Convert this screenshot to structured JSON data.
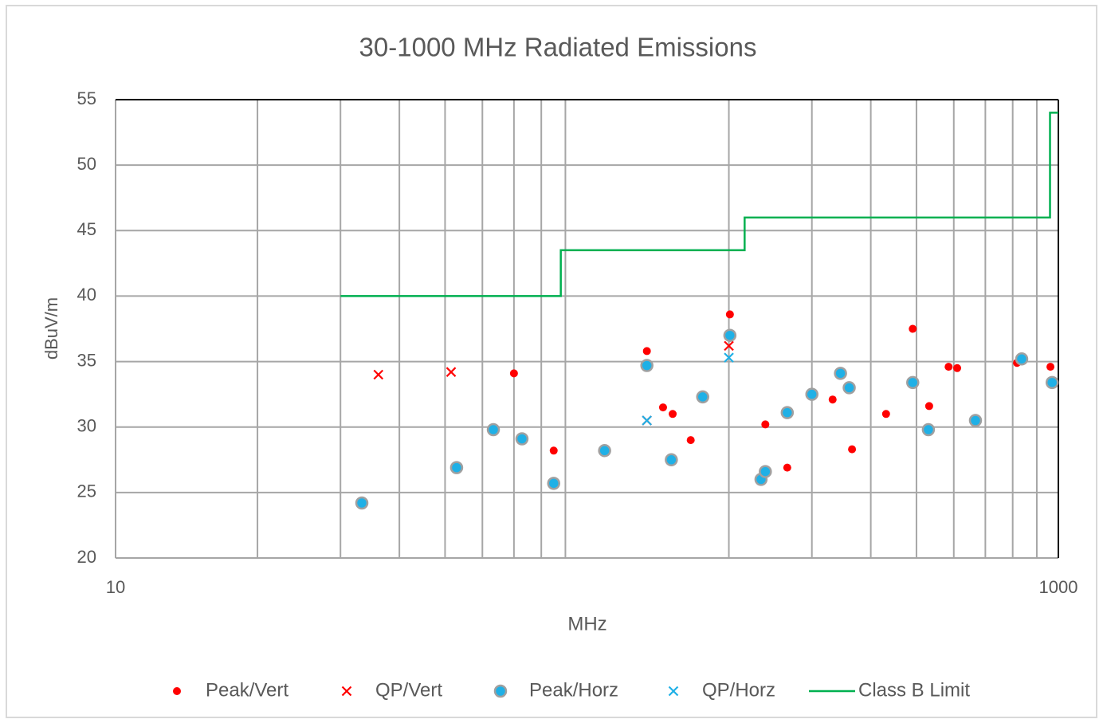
{
  "chart_data": {
    "type": "scatter",
    "title": "30-1000 MHz Radiated Emissions",
    "x_label": "MHz",
    "y_label": "dBuV/m",
    "xscale": "log",
    "xlim": [
      10,
      1000
    ],
    "xticks": [
      10,
      1000
    ],
    "ylim": [
      20,
      55
    ],
    "yticks": [
      20,
      25,
      30,
      35,
      40,
      45,
      50,
      55
    ],
    "grid": true,
    "legend": "bottom",
    "series": [
      {
        "name": "Peak/Vert",
        "marker": "dot",
        "color": "#ff0000",
        "x": [
          70,
          85,
          134,
          145,
          152,
          166,
          201,
          239,
          266,
          332,
          365,
          431,
          491,
          532,
          585,
          610,
          817,
          962
        ],
        "values": [
          34.1,
          28.2,
          35.8,
          31.5,
          31.0,
          29.0,
          38.6,
          30.2,
          26.9,
          32.1,
          28.3,
          31.0,
          37.5,
          31.6,
          34.6,
          34.5,
          34.9,
          34.6
        ]
      },
      {
        "name": "QP/Vert",
        "marker": "x",
        "color": "#ff0000",
        "x": [
          36.1,
          51.5,
          134,
          200
        ],
        "values": [
          34.0,
          34.2,
          30.5,
          36.2
        ]
      },
      {
        "name": "Peak/Horz",
        "marker": "circle",
        "color": "#1fb0e6",
        "x": [
          33.3,
          52.9,
          63.3,
          72.8,
          85,
          109,
          134,
          151,
          176,
          201,
          234,
          239,
          266,
          300,
          345,
          360,
          491,
          530,
          667,
          836,
          970
        ],
        "values": [
          24.2,
          26.9,
          29.8,
          29.1,
          25.7,
          28.2,
          34.7,
          27.5,
          32.3,
          37.0,
          26.0,
          26.6,
          31.1,
          32.5,
          34.1,
          33.0,
          33.4,
          29.8,
          30.5,
          35.2,
          33.4
        ]
      },
      {
        "name": "QP/Horz",
        "marker": "x",
        "color": "#1fb0e6",
        "x": [
          134,
          200
        ],
        "values": [
          30.5,
          35.3
        ]
      },
      {
        "name": "Class B Limit",
        "marker": "line",
        "color": "#00b050",
        "x": [
          30,
          88,
          88,
          216,
          216,
          960,
          960,
          1000
        ],
        "values": [
          40,
          40,
          43.5,
          43.5,
          46,
          46,
          54,
          54
        ]
      }
    ]
  }
}
